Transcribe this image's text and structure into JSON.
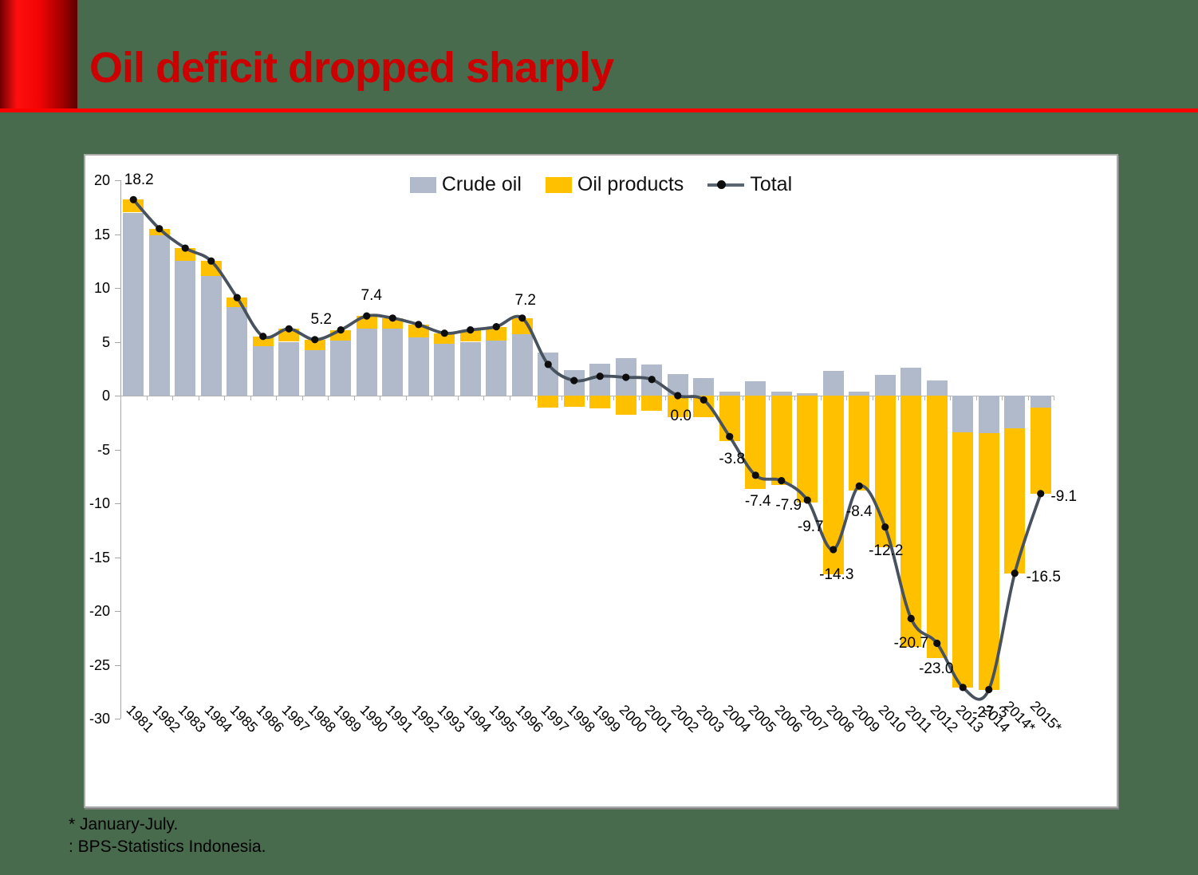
{
  "slide": {
    "title": "Oil deficit dropped sharply",
    "title_color": "#cc0000",
    "background_color": "#486b4e",
    "accent_color": "#ff0000",
    "panel_background": "#ffffff"
  },
  "footnotes": {
    "line1": "* January-July.",
    "line2": ": BPS-Statistics Indonesia."
  },
  "legend": [
    {
      "label": "Crude oil",
      "type": "box",
      "color": "#b0bacb"
    },
    {
      "label": "Oil products",
      "type": "box",
      "color": "#ffc000"
    },
    {
      "label": "Total",
      "type": "line-marker",
      "color": "#47525e"
    }
  ],
  "chart_data": {
    "type": "bar",
    "subtype": "stacked-bars-with-line-overlay",
    "categories": [
      "1981",
      "1982",
      "1983",
      "1984",
      "1985",
      "1986",
      "1987",
      "1988",
      "1989",
      "1990",
      "1991",
      "1992",
      "1993",
      "1994",
      "1995",
      "1996",
      "1997",
      "1998",
      "1999",
      "2000",
      "2001",
      "2002",
      "2003",
      "2004",
      "2005",
      "2006",
      "2007",
      "2008",
      "2009",
      "2010",
      "2011",
      "2012",
      "2013",
      "2014",
      "2014*",
      "2015*"
    ],
    "series": [
      {
        "name": "Crude oil",
        "type": "bar",
        "color": "#b0bacb",
        "values": [
          17.0,
          14.9,
          12.5,
          11.1,
          8.2,
          4.6,
          5.0,
          4.2,
          5.1,
          6.2,
          6.2,
          5.4,
          4.8,
          5.0,
          5.1,
          5.7,
          4.0,
          2.4,
          3.0,
          3.5,
          2.9,
          2.0,
          1.6,
          0.4,
          1.3,
          0.4,
          0.2,
          2.3,
          0.4,
          1.9,
          2.6,
          1.4,
          -3.4,
          -3.5,
          -3.0,
          -1.1
        ]
      },
      {
        "name": "Oil products",
        "type": "bar",
        "color": "#ffc000",
        "values": [
          1.2,
          0.6,
          1.2,
          1.4,
          0.9,
          0.9,
          1.2,
          1.0,
          1.0,
          1.2,
          1.0,
          1.2,
          1.0,
          1.1,
          1.3,
          1.5,
          -1.1,
          -1.0,
          -1.2,
          -1.8,
          -1.4,
          -2.0,
          -2.0,
          -4.2,
          -8.7,
          -8.3,
          -9.9,
          -16.6,
          -8.8,
          -14.1,
          -23.3,
          -24.4,
          -23.7,
          -23.8,
          -13.5,
          -8.0
        ]
      },
      {
        "name": "Total",
        "type": "line",
        "color": "#47525e",
        "marker_color": "#0d0d0d",
        "smooth": true,
        "values": [
          18.2,
          15.5,
          13.7,
          12.5,
          9.1,
          5.5,
          6.2,
          5.2,
          6.1,
          7.4,
          7.2,
          6.6,
          5.8,
          6.1,
          6.4,
          7.2,
          2.9,
          1.4,
          1.8,
          1.7,
          1.5,
          0.0,
          -0.4,
          -3.8,
          -7.4,
          -7.9,
          -9.7,
          -14.3,
          -8.4,
          -12.2,
          -20.7,
          -23.0,
          -27.1,
          -27.3,
          -16.5,
          -9.1
        ],
        "point_labels": [
          {
            "index": 0,
            "text": "18.2",
            "dx": 7,
            "dy": -24
          },
          {
            "index": 7,
            "text": "5.2",
            "dx": 8,
            "dy": -25
          },
          {
            "index": 9,
            "text": "7.4",
            "dx": 6,
            "dy": -25
          },
          {
            "index": 15,
            "text": "7.2",
            "dx": 4,
            "dy": -22
          },
          {
            "index": 21,
            "text": "0.0",
            "dx": 4,
            "dy": 26
          },
          {
            "index": 23,
            "text": "-3.8",
            "dx": 3,
            "dy": 29
          },
          {
            "index": 24,
            "text": "-7.4",
            "dx": 3,
            "dy": 33
          },
          {
            "index": 25,
            "text": "-7.9",
            "dx": 9,
            "dy": 31
          },
          {
            "index": 26,
            "text": "-9.7",
            "dx": 4,
            "dy": 34
          },
          {
            "index": 27,
            "text": "-14.3",
            "dx": 4,
            "dy": 32
          },
          {
            "index": 28,
            "text": "-8.4",
            "dx": 0,
            "dy": 33
          },
          {
            "index": 29,
            "text": "-12.2",
            "dx": 1,
            "dy": 30
          },
          {
            "index": 30,
            "text": "-20.7",
            "dx": 0,
            "dy": 32
          },
          {
            "index": 31,
            "text": "-23.0",
            "dx": -1,
            "dy": 32
          },
          {
            "index": 33,
            "text": "-27.3",
            "dx": 1,
            "dy": 29
          },
          {
            "index": 34,
            "text": "-16.5",
            "dx": 36,
            "dy": 5
          },
          {
            "index": 35,
            "text": "-9.1",
            "dx": 29,
            "dy": 4
          }
        ]
      }
    ],
    "ylim": [
      -30,
      20
    ],
    "ytick_step": 5,
    "grid": false,
    "legend_position": "top-center",
    "axis_color": "#a6a6a6"
  }
}
